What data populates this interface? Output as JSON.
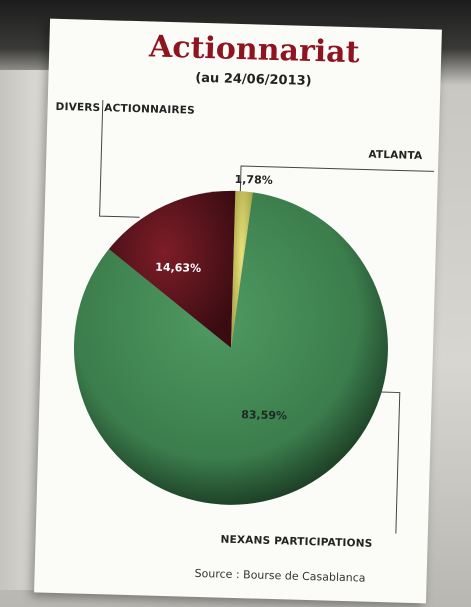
{
  "chart_data": {
    "type": "pie",
    "title": "Actionnariat",
    "subtitle": "(au 24/06/2013)",
    "slices": [
      {
        "label": "ATLANTA",
        "value": 1.78,
        "display": "1,78%",
        "color": "#d9d46a"
      },
      {
        "label": "NEXANS PARTICIPATIONS",
        "value": 83.59,
        "display": "83,59%",
        "color": "#3f8a52"
      },
      {
        "label": "DIVERS ACTIONNAIRES",
        "value": 14.63,
        "display": "14,63%",
        "color": "#6e1722"
      }
    ],
    "source": "Source : Bourse de Casablanca"
  }
}
